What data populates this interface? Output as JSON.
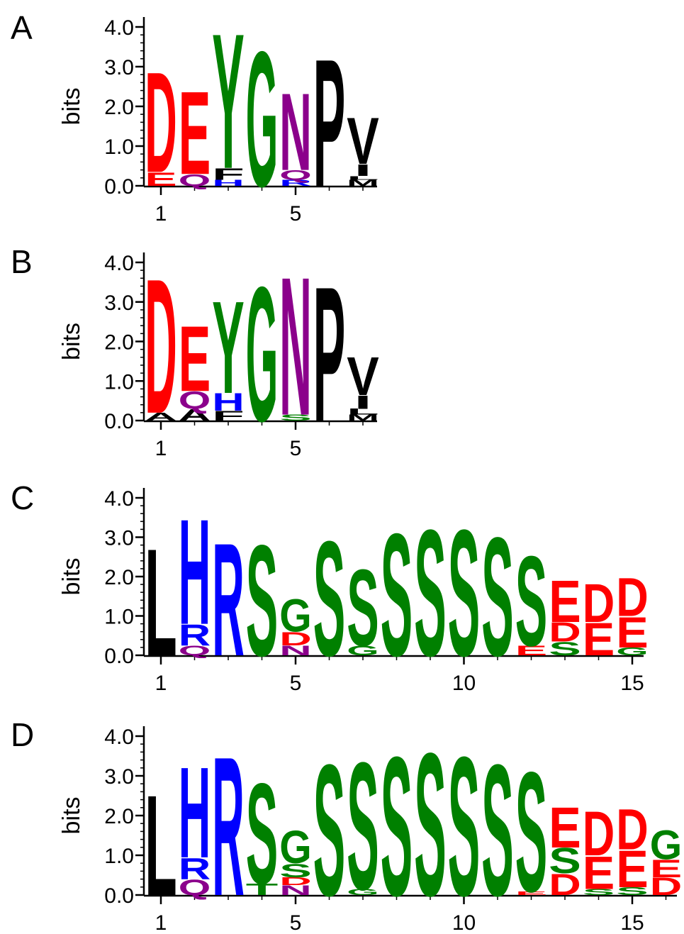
{
  "colors": {
    "acidic": "#ff0000",
    "basic": "#0000ff",
    "polar_amide": "#8b008b",
    "small_polar": "#008000",
    "hydrophobic": "#000000"
  },
  "chart_data": [
    {
      "type": "sequence-logo",
      "panel": "A",
      "ylabel": "bits",
      "ylim": [
        0,
        4
      ],
      "yticks": [
        "0.0",
        "1.0",
        "2.0",
        "3.0",
        "4.0"
      ],
      "xticks": [
        1,
        5
      ],
      "positions": [
        {
          "pos": 1,
          "stack": [
            {
              "letter": "E",
              "bits": 0.35
            },
            {
              "letter": "D",
              "bits": 2.6
            }
          ]
        },
        {
          "pos": 2,
          "stack": [
            {
              "letter": "Q",
              "bits": 0.3
            },
            {
              "letter": "E",
              "bits": 2.15
            }
          ]
        },
        {
          "pos": 3,
          "stack": [
            {
              "letter": "H",
              "bits": 0.15
            },
            {
              "letter": "F",
              "bits": 0.3
            },
            {
              "letter": "Y",
              "bits": 3.5
            }
          ]
        },
        {
          "pos": 4,
          "stack": [
            {
              "letter": "G",
              "bits": 3.5
            }
          ]
        },
        {
          "pos": 5,
          "stack": [
            {
              "letter": "R",
              "bits": 0.15
            },
            {
              "letter": "Q",
              "bits": 0.25
            },
            {
              "letter": "N",
              "bits": 2.0
            }
          ]
        },
        {
          "pos": 6,
          "stack": [
            {
              "letter": "P",
              "bits": 3.3
            }
          ]
        },
        {
          "pos": 7,
          "stack": [
            {
              "letter": "M",
              "bits": 0.15
            },
            {
              "letter": "L",
              "bits": 0.1
            },
            {
              "letter": "I",
              "bits": 0.3
            },
            {
              "letter": "V",
              "bits": 1.2
            }
          ]
        }
      ]
    },
    {
      "type": "sequence-logo",
      "panel": "B",
      "ylabel": "bits",
      "ylim": [
        0,
        4
      ],
      "yticks": [
        "0.0",
        "1.0",
        "2.0",
        "3.0",
        "4.0"
      ],
      "xticks": [
        1,
        5
      ],
      "positions": [
        {
          "pos": 1,
          "stack": [
            {
              "letter": "A",
              "bits": 0.2
            },
            {
              "letter": "D",
              "bits": 3.5
            }
          ]
        },
        {
          "pos": 2,
          "stack": [
            {
              "letter": "A",
              "bits": 0.3
            },
            {
              "letter": "Q",
              "bits": 0.45
            },
            {
              "letter": "E",
              "bits": 1.7
            }
          ]
        },
        {
          "pos": 3,
          "stack": [
            {
              "letter": "F",
              "bits": 0.25
            },
            {
              "letter": "H",
              "bits": 0.45
            },
            {
              "letter": "Y",
              "bits": 2.4
            }
          ]
        },
        {
          "pos": 4,
          "stack": [
            {
              "letter": "G",
              "bits": 3.5
            }
          ]
        },
        {
          "pos": 5,
          "stack": [
            {
              "letter": "S",
              "bits": 0.15
            },
            {
              "letter": "N",
              "bits": 3.6
            }
          ]
        },
        {
          "pos": 6,
          "stack": [
            {
              "letter": "P",
              "bits": 3.5
            }
          ]
        },
        {
          "pos": 7,
          "stack": [
            {
              "letter": "M",
              "bits": 0.15
            },
            {
              "letter": "L",
              "bits": 0.15
            },
            {
              "letter": "I",
              "bits": 0.35
            },
            {
              "letter": "V",
              "bits": 1.0
            }
          ]
        }
      ]
    },
    {
      "type": "sequence-logo",
      "panel": "C",
      "ylabel": "bits",
      "ylim": [
        0,
        4
      ],
      "yticks": [
        "0.0",
        "1.0",
        "2.0",
        "3.0",
        "4.0"
      ],
      "xticks": [
        1,
        5,
        10,
        15
      ],
      "positions": [
        {
          "pos": 1,
          "stack": [
            {
              "letter": "L",
              "bits": 2.8
            }
          ]
        },
        {
          "pos": 2,
          "stack": [
            {
              "letter": "Q",
              "bits": 0.25
            },
            {
              "letter": "R",
              "bits": 0.55
            },
            {
              "letter": "H",
              "bits": 2.75
            }
          ]
        },
        {
          "pos": 3,
          "stack": [
            {
              "letter": "R",
              "bits": 2.95
            }
          ]
        },
        {
          "pos": 4,
          "stack": [
            {
              "letter": "S",
              "bits": 2.9
            }
          ]
        },
        {
          "pos": 5,
          "stack": [
            {
              "letter": "N",
              "bits": 0.25
            },
            {
              "letter": "D",
              "bits": 0.35
            },
            {
              "letter": "G",
              "bits": 0.85
            }
          ]
        },
        {
          "pos": 6,
          "stack": [
            {
              "letter": "S",
              "bits": 3.0
            }
          ]
        },
        {
          "pos": 7,
          "stack": [
            {
              "letter": "G",
              "bits": 0.25
            },
            {
              "letter": "S",
              "bits": 2.0
            }
          ]
        },
        {
          "pos": 8,
          "stack": [
            {
              "letter": "S",
              "bits": 3.2
            }
          ]
        },
        {
          "pos": 9,
          "stack": [
            {
              "letter": "S",
              "bits": 3.3
            }
          ]
        },
        {
          "pos": 10,
          "stack": [
            {
              "letter": "S",
              "bits": 3.3
            }
          ]
        },
        {
          "pos": 11,
          "stack": [
            {
              "letter": "S",
              "bits": 3.1
            }
          ]
        },
        {
          "pos": 12,
          "stack": [
            {
              "letter": "E",
              "bits": 0.25
            },
            {
              "letter": "S",
              "bits": 2.35
            }
          ]
        },
        {
          "pos": 13,
          "stack": [
            {
              "letter": "S",
              "bits": 0.35
            },
            {
              "letter": "D",
              "bits": 0.5
            },
            {
              "letter": "E",
              "bits": 1.1
            }
          ]
        },
        {
          "pos": 14,
          "stack": [
            {
              "letter": "E",
              "bits": 0.85
            },
            {
              "letter": "D",
              "bits": 1.0
            }
          ]
        },
        {
          "pos": 15,
          "stack": [
            {
              "letter": "G",
              "bits": 0.2
            },
            {
              "letter": "E",
              "bits": 0.8
            },
            {
              "letter": "D",
              "bits": 1.0
            }
          ]
        }
      ]
    },
    {
      "type": "sequence-logo",
      "panel": "D",
      "ylabel": "bits",
      "ylim": [
        0,
        4
      ],
      "yticks": [
        "0.0",
        "1.0",
        "2.0",
        "3.0",
        "4.0"
      ],
      "xticks": [
        1,
        5,
        10,
        15
      ],
      "positions": [
        {
          "pos": 1,
          "stack": [
            {
              "letter": "L",
              "bits": 2.6
            }
          ]
        },
        {
          "pos": 2,
          "stack": [
            {
              "letter": "Q",
              "bits": 0.4
            },
            {
              "letter": "R",
              "bits": 0.55
            },
            {
              "letter": "H",
              "bits": 2.35
            }
          ]
        },
        {
          "pos": 3,
          "stack": [
            {
              "letter": "R",
              "bits": 3.6
            }
          ]
        },
        {
          "pos": 4,
          "stack": [
            {
              "letter": "T",
              "bits": 0.3
            },
            {
              "letter": "S",
              "bits": 2.6
            }
          ]
        },
        {
          "pos": 5,
          "stack": [
            {
              "letter": "N",
              "bits": 0.25
            },
            {
              "letter": "D",
              "bits": 0.2
            },
            {
              "letter": "S",
              "bits": 0.35
            },
            {
              "letter": "G",
              "bits": 0.85
            }
          ]
        },
        {
          "pos": 6,
          "stack": [
            {
              "letter": "S",
              "bits": 3.4
            }
          ]
        },
        {
          "pos": 7,
          "stack": [
            {
              "letter": "G",
              "bits": 0.15
            },
            {
              "letter": "S",
              "bits": 3.3
            }
          ]
        },
        {
          "pos": 8,
          "stack": [
            {
              "letter": "S",
              "bits": 3.6
            }
          ]
        },
        {
          "pos": 9,
          "stack": [
            {
              "letter": "S",
              "bits": 3.7
            }
          ]
        },
        {
          "pos": 10,
          "stack": [
            {
              "letter": "S",
              "bits": 3.6
            }
          ]
        },
        {
          "pos": 11,
          "stack": [
            {
              "letter": "S",
              "bits": 3.4
            }
          ]
        },
        {
          "pos": 12,
          "stack": [
            {
              "letter": "E",
              "bits": 0.1
            },
            {
              "letter": "S",
              "bits": 3.1
            }
          ]
        },
        {
          "pos": 13,
          "stack": [
            {
              "letter": "D",
              "bits": 0.55
            },
            {
              "letter": "S",
              "bits": 0.65
            },
            {
              "letter": "E",
              "bits": 1.05
            }
          ]
        },
        {
          "pos": 14,
          "stack": [
            {
              "letter": "S",
              "bits": 0.15
            },
            {
              "letter": "E",
              "bits": 0.85
            },
            {
              "letter": "D",
              "bits": 1.15
            }
          ]
        },
        {
          "pos": 15,
          "stack": [
            {
              "letter": "S",
              "bits": 0.2
            },
            {
              "letter": "E",
              "bits": 0.95
            },
            {
              "letter": "D",
              "bits": 1.05
            }
          ]
        },
        {
          "pos": 16,
          "stack": [
            {
              "letter": "D",
              "bits": 0.45
            },
            {
              "letter": "E",
              "bits": 0.45
            },
            {
              "letter": "G",
              "bits": 0.75
            }
          ]
        }
      ]
    }
  ]
}
